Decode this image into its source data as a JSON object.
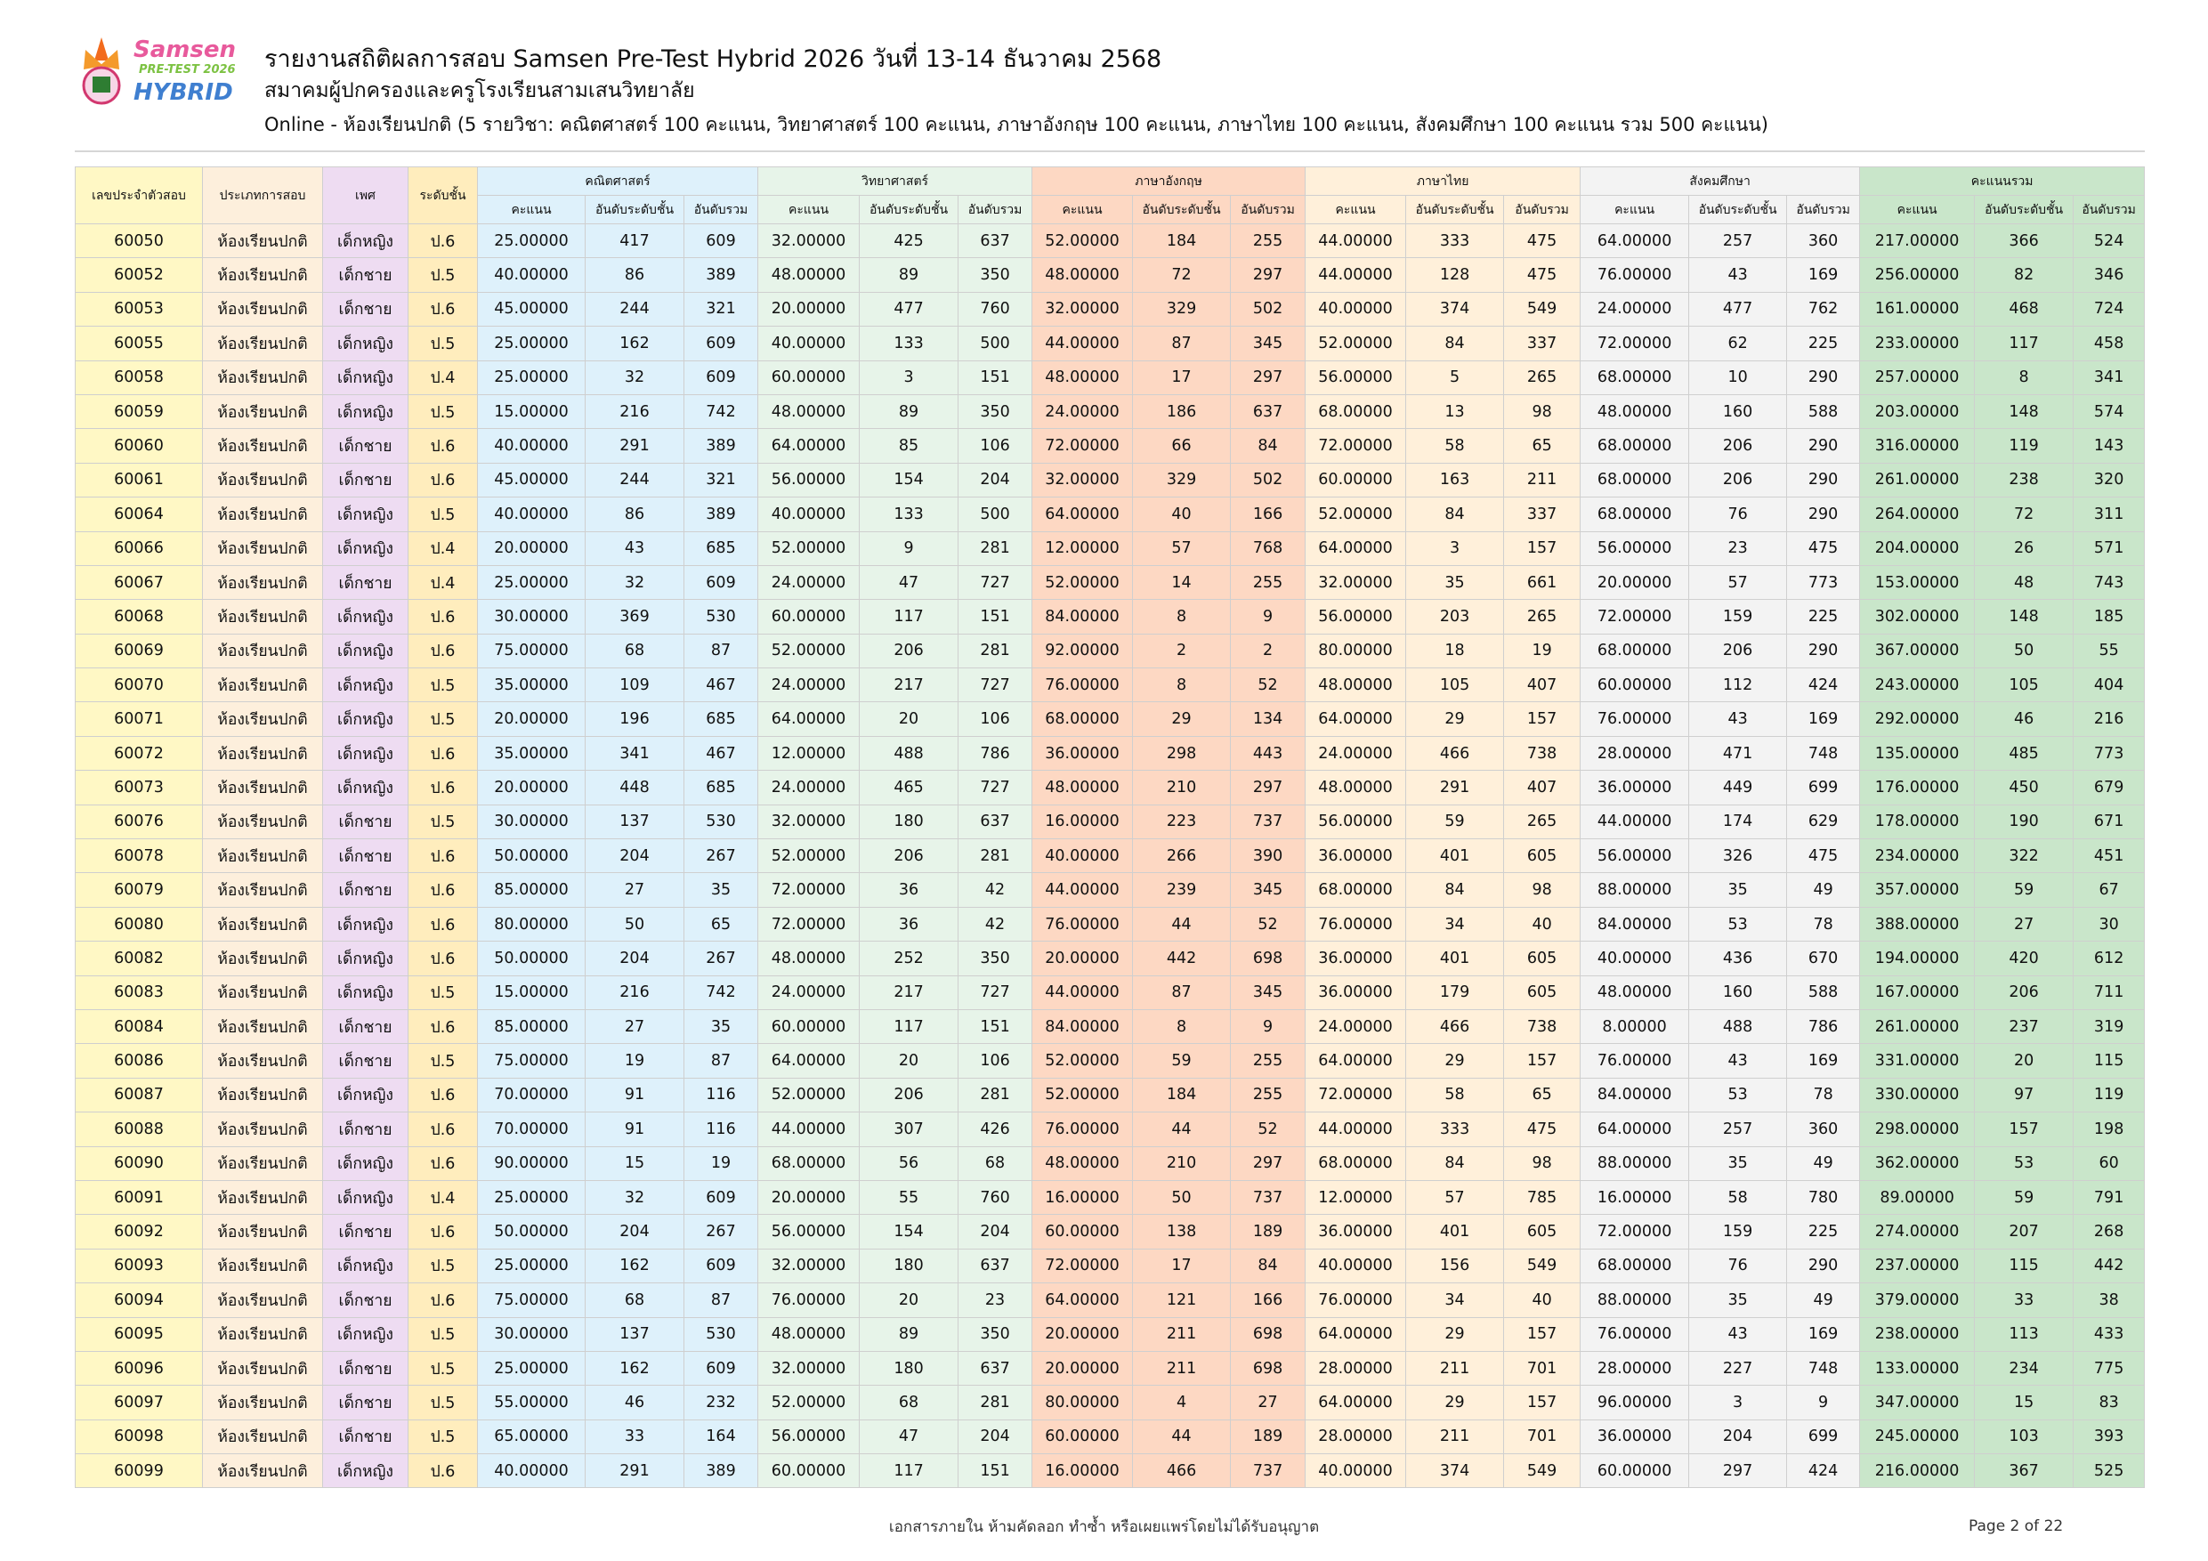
{
  "logo": {
    "line1": "Samsen",
    "line2": "PRE-TEST 2026",
    "line3": "HYBRID"
  },
  "header": {
    "title": "รายงานสถิติผลการสอบ Samsen Pre-Test Hybrid 2026 วันที่ 13-14 ธันวาคม 2568",
    "org": "สมาคมผู้ปกครองและครูโรงเรียนสามเสนวิทยาลัย",
    "subtitle": "Online - ห้องเรียนปกติ (5 รายวิชา: คณิตศาสตร์ 100 คะแนน, วิทยาศาสตร์ 100 คะแนน, ภาษาอังกฤษ 100 คะแนน, ภาษาไทย 100 คะแนน, สังคมศึกษา 100 คะแนน รวม 500 คะแนน)"
  },
  "colors": {
    "id": "#fff8c5",
    "type": "#fdefdc",
    "sex": "#eedcf2",
    "level": "#ffedbd",
    "math": "#def1fb",
    "science": "#e7f4e9",
    "english": "#fdd8c3",
    "thai": "#fff0da",
    "social": "#f3f3f3",
    "total": "#c9e6ca"
  },
  "table": {
    "fixed_headers": [
      "เลขประจำตัวสอบ",
      "ประเภทการสอบ",
      "เพศ",
      "ระดับชั้น"
    ],
    "groups": [
      "คณิตศาสตร์",
      "วิทยาศาสตร์",
      "ภาษาอังกฤษ",
      "ภาษาไทย",
      "สังคมศึกษา",
      "คะแนนรวม"
    ],
    "sub_headers": [
      "คะแนน",
      "อันดับระดับชั้น",
      "อันดับรวม"
    ],
    "rows": [
      [
        "60050",
        "ห้องเรียนปกติ",
        "เด็กหญิง",
        "ป.6",
        "25.00000",
        "417",
        "609",
        "32.00000",
        "425",
        "637",
        "52.00000",
        "184",
        "255",
        "44.00000",
        "333",
        "475",
        "64.00000",
        "257",
        "360",
        "217.00000",
        "366",
        "524"
      ],
      [
        "60052",
        "ห้องเรียนปกติ",
        "เด็กชาย",
        "ป.5",
        "40.00000",
        "86",
        "389",
        "48.00000",
        "89",
        "350",
        "48.00000",
        "72",
        "297",
        "44.00000",
        "128",
        "475",
        "76.00000",
        "43",
        "169",
        "256.00000",
        "82",
        "346"
      ],
      [
        "60053",
        "ห้องเรียนปกติ",
        "เด็กชาย",
        "ป.6",
        "45.00000",
        "244",
        "321",
        "20.00000",
        "477",
        "760",
        "32.00000",
        "329",
        "502",
        "40.00000",
        "374",
        "549",
        "24.00000",
        "477",
        "762",
        "161.00000",
        "468",
        "724"
      ],
      [
        "60055",
        "ห้องเรียนปกติ",
        "เด็กหญิง",
        "ป.5",
        "25.00000",
        "162",
        "609",
        "40.00000",
        "133",
        "500",
        "44.00000",
        "87",
        "345",
        "52.00000",
        "84",
        "337",
        "72.00000",
        "62",
        "225",
        "233.00000",
        "117",
        "458"
      ],
      [
        "60058",
        "ห้องเรียนปกติ",
        "เด็กหญิง",
        "ป.4",
        "25.00000",
        "32",
        "609",
        "60.00000",
        "3",
        "151",
        "48.00000",
        "17",
        "297",
        "56.00000",
        "5",
        "265",
        "68.00000",
        "10",
        "290",
        "257.00000",
        "8",
        "341"
      ],
      [
        "60059",
        "ห้องเรียนปกติ",
        "เด็กหญิง",
        "ป.5",
        "15.00000",
        "216",
        "742",
        "48.00000",
        "89",
        "350",
        "24.00000",
        "186",
        "637",
        "68.00000",
        "13",
        "98",
        "48.00000",
        "160",
        "588",
        "203.00000",
        "148",
        "574"
      ],
      [
        "60060",
        "ห้องเรียนปกติ",
        "เด็กชาย",
        "ป.6",
        "40.00000",
        "291",
        "389",
        "64.00000",
        "85",
        "106",
        "72.00000",
        "66",
        "84",
        "72.00000",
        "58",
        "65",
        "68.00000",
        "206",
        "290",
        "316.00000",
        "119",
        "143"
      ],
      [
        "60061",
        "ห้องเรียนปกติ",
        "เด็กชาย",
        "ป.6",
        "45.00000",
        "244",
        "321",
        "56.00000",
        "154",
        "204",
        "32.00000",
        "329",
        "502",
        "60.00000",
        "163",
        "211",
        "68.00000",
        "206",
        "290",
        "261.00000",
        "238",
        "320"
      ],
      [
        "60064",
        "ห้องเรียนปกติ",
        "เด็กหญิง",
        "ป.5",
        "40.00000",
        "86",
        "389",
        "40.00000",
        "133",
        "500",
        "64.00000",
        "40",
        "166",
        "52.00000",
        "84",
        "337",
        "68.00000",
        "76",
        "290",
        "264.00000",
        "72",
        "311"
      ],
      [
        "60066",
        "ห้องเรียนปกติ",
        "เด็กหญิง",
        "ป.4",
        "20.00000",
        "43",
        "685",
        "52.00000",
        "9",
        "281",
        "12.00000",
        "57",
        "768",
        "64.00000",
        "3",
        "157",
        "56.00000",
        "23",
        "475",
        "204.00000",
        "26",
        "571"
      ],
      [
        "60067",
        "ห้องเรียนปกติ",
        "เด็กชาย",
        "ป.4",
        "25.00000",
        "32",
        "609",
        "24.00000",
        "47",
        "727",
        "52.00000",
        "14",
        "255",
        "32.00000",
        "35",
        "661",
        "20.00000",
        "57",
        "773",
        "153.00000",
        "48",
        "743"
      ],
      [
        "60068",
        "ห้องเรียนปกติ",
        "เด็กหญิง",
        "ป.6",
        "30.00000",
        "369",
        "530",
        "60.00000",
        "117",
        "151",
        "84.00000",
        "8",
        "9",
        "56.00000",
        "203",
        "265",
        "72.00000",
        "159",
        "225",
        "302.00000",
        "148",
        "185"
      ],
      [
        "60069",
        "ห้องเรียนปกติ",
        "เด็กหญิง",
        "ป.6",
        "75.00000",
        "68",
        "87",
        "52.00000",
        "206",
        "281",
        "92.00000",
        "2",
        "2",
        "80.00000",
        "18",
        "19",
        "68.00000",
        "206",
        "290",
        "367.00000",
        "50",
        "55"
      ],
      [
        "60070",
        "ห้องเรียนปกติ",
        "เด็กหญิง",
        "ป.5",
        "35.00000",
        "109",
        "467",
        "24.00000",
        "217",
        "727",
        "76.00000",
        "8",
        "52",
        "48.00000",
        "105",
        "407",
        "60.00000",
        "112",
        "424",
        "243.00000",
        "105",
        "404"
      ],
      [
        "60071",
        "ห้องเรียนปกติ",
        "เด็กหญิง",
        "ป.5",
        "20.00000",
        "196",
        "685",
        "64.00000",
        "20",
        "106",
        "68.00000",
        "29",
        "134",
        "64.00000",
        "29",
        "157",
        "76.00000",
        "43",
        "169",
        "292.00000",
        "46",
        "216"
      ],
      [
        "60072",
        "ห้องเรียนปกติ",
        "เด็กหญิง",
        "ป.6",
        "35.00000",
        "341",
        "467",
        "12.00000",
        "488",
        "786",
        "36.00000",
        "298",
        "443",
        "24.00000",
        "466",
        "738",
        "28.00000",
        "471",
        "748",
        "135.00000",
        "485",
        "773"
      ],
      [
        "60073",
        "ห้องเรียนปกติ",
        "เด็กหญิง",
        "ป.6",
        "20.00000",
        "448",
        "685",
        "24.00000",
        "465",
        "727",
        "48.00000",
        "210",
        "297",
        "48.00000",
        "291",
        "407",
        "36.00000",
        "449",
        "699",
        "176.00000",
        "450",
        "679"
      ],
      [
        "60076",
        "ห้องเรียนปกติ",
        "เด็กชาย",
        "ป.5",
        "30.00000",
        "137",
        "530",
        "32.00000",
        "180",
        "637",
        "16.00000",
        "223",
        "737",
        "56.00000",
        "59",
        "265",
        "44.00000",
        "174",
        "629",
        "178.00000",
        "190",
        "671"
      ],
      [
        "60078",
        "ห้องเรียนปกติ",
        "เด็กชาย",
        "ป.6",
        "50.00000",
        "204",
        "267",
        "52.00000",
        "206",
        "281",
        "40.00000",
        "266",
        "390",
        "36.00000",
        "401",
        "605",
        "56.00000",
        "326",
        "475",
        "234.00000",
        "322",
        "451"
      ],
      [
        "60079",
        "ห้องเรียนปกติ",
        "เด็กชาย",
        "ป.6",
        "85.00000",
        "27",
        "35",
        "72.00000",
        "36",
        "42",
        "44.00000",
        "239",
        "345",
        "68.00000",
        "84",
        "98",
        "88.00000",
        "35",
        "49",
        "357.00000",
        "59",
        "67"
      ],
      [
        "60080",
        "ห้องเรียนปกติ",
        "เด็กหญิง",
        "ป.6",
        "80.00000",
        "50",
        "65",
        "72.00000",
        "36",
        "42",
        "76.00000",
        "44",
        "52",
        "76.00000",
        "34",
        "40",
        "84.00000",
        "53",
        "78",
        "388.00000",
        "27",
        "30"
      ],
      [
        "60082",
        "ห้องเรียนปกติ",
        "เด็กหญิง",
        "ป.6",
        "50.00000",
        "204",
        "267",
        "48.00000",
        "252",
        "350",
        "20.00000",
        "442",
        "698",
        "36.00000",
        "401",
        "605",
        "40.00000",
        "436",
        "670",
        "194.00000",
        "420",
        "612"
      ],
      [
        "60083",
        "ห้องเรียนปกติ",
        "เด็กหญิง",
        "ป.5",
        "15.00000",
        "216",
        "742",
        "24.00000",
        "217",
        "727",
        "44.00000",
        "87",
        "345",
        "36.00000",
        "179",
        "605",
        "48.00000",
        "160",
        "588",
        "167.00000",
        "206",
        "711"
      ],
      [
        "60084",
        "ห้องเรียนปกติ",
        "เด็กชาย",
        "ป.6",
        "85.00000",
        "27",
        "35",
        "60.00000",
        "117",
        "151",
        "84.00000",
        "8",
        "9",
        "24.00000",
        "466",
        "738",
        "8.00000",
        "488",
        "786",
        "261.00000",
        "237",
        "319"
      ],
      [
        "60086",
        "ห้องเรียนปกติ",
        "เด็กชาย",
        "ป.5",
        "75.00000",
        "19",
        "87",
        "64.00000",
        "20",
        "106",
        "52.00000",
        "59",
        "255",
        "64.00000",
        "29",
        "157",
        "76.00000",
        "43",
        "169",
        "331.00000",
        "20",
        "115"
      ],
      [
        "60087",
        "ห้องเรียนปกติ",
        "เด็กหญิง",
        "ป.6",
        "70.00000",
        "91",
        "116",
        "52.00000",
        "206",
        "281",
        "52.00000",
        "184",
        "255",
        "72.00000",
        "58",
        "65",
        "84.00000",
        "53",
        "78",
        "330.00000",
        "97",
        "119"
      ],
      [
        "60088",
        "ห้องเรียนปกติ",
        "เด็กชาย",
        "ป.6",
        "70.00000",
        "91",
        "116",
        "44.00000",
        "307",
        "426",
        "76.00000",
        "44",
        "52",
        "44.00000",
        "333",
        "475",
        "64.00000",
        "257",
        "360",
        "298.00000",
        "157",
        "198"
      ],
      [
        "60090",
        "ห้องเรียนปกติ",
        "เด็กหญิง",
        "ป.6",
        "90.00000",
        "15",
        "19",
        "68.00000",
        "56",
        "68",
        "48.00000",
        "210",
        "297",
        "68.00000",
        "84",
        "98",
        "88.00000",
        "35",
        "49",
        "362.00000",
        "53",
        "60"
      ],
      [
        "60091",
        "ห้องเรียนปกติ",
        "เด็กหญิง",
        "ป.4",
        "25.00000",
        "32",
        "609",
        "20.00000",
        "55",
        "760",
        "16.00000",
        "50",
        "737",
        "12.00000",
        "57",
        "785",
        "16.00000",
        "58",
        "780",
        "89.00000",
        "59",
        "791"
      ],
      [
        "60092",
        "ห้องเรียนปกติ",
        "เด็กชาย",
        "ป.6",
        "50.00000",
        "204",
        "267",
        "56.00000",
        "154",
        "204",
        "60.00000",
        "138",
        "189",
        "36.00000",
        "401",
        "605",
        "72.00000",
        "159",
        "225",
        "274.00000",
        "207",
        "268"
      ],
      [
        "60093",
        "ห้องเรียนปกติ",
        "เด็กหญิง",
        "ป.5",
        "25.00000",
        "162",
        "609",
        "32.00000",
        "180",
        "637",
        "72.00000",
        "17",
        "84",
        "40.00000",
        "156",
        "549",
        "68.00000",
        "76",
        "290",
        "237.00000",
        "115",
        "442"
      ],
      [
        "60094",
        "ห้องเรียนปกติ",
        "เด็กชาย",
        "ป.6",
        "75.00000",
        "68",
        "87",
        "76.00000",
        "20",
        "23",
        "64.00000",
        "121",
        "166",
        "76.00000",
        "34",
        "40",
        "88.00000",
        "35",
        "49",
        "379.00000",
        "33",
        "38"
      ],
      [
        "60095",
        "ห้องเรียนปกติ",
        "เด็กหญิง",
        "ป.5",
        "30.00000",
        "137",
        "530",
        "48.00000",
        "89",
        "350",
        "20.00000",
        "211",
        "698",
        "64.00000",
        "29",
        "157",
        "76.00000",
        "43",
        "169",
        "238.00000",
        "113",
        "433"
      ],
      [
        "60096",
        "ห้องเรียนปกติ",
        "เด็กชาย",
        "ป.5",
        "25.00000",
        "162",
        "609",
        "32.00000",
        "180",
        "637",
        "20.00000",
        "211",
        "698",
        "28.00000",
        "211",
        "701",
        "28.00000",
        "227",
        "748",
        "133.00000",
        "234",
        "775"
      ],
      [
        "60097",
        "ห้องเรียนปกติ",
        "เด็กชาย",
        "ป.5",
        "55.00000",
        "46",
        "232",
        "52.00000",
        "68",
        "281",
        "80.00000",
        "4",
        "27",
        "64.00000",
        "29",
        "157",
        "96.00000",
        "3",
        "9",
        "347.00000",
        "15",
        "83"
      ],
      [
        "60098",
        "ห้องเรียนปกติ",
        "เด็กชาย",
        "ป.5",
        "65.00000",
        "33",
        "164",
        "56.00000",
        "47",
        "204",
        "60.00000",
        "44",
        "189",
        "28.00000",
        "211",
        "701",
        "36.00000",
        "204",
        "699",
        "245.00000",
        "103",
        "393"
      ],
      [
        "60099",
        "ห้องเรียนปกติ",
        "เด็กหญิง",
        "ป.6",
        "40.00000",
        "291",
        "389",
        "60.00000",
        "117",
        "151",
        "16.00000",
        "466",
        "737",
        "40.00000",
        "374",
        "549",
        "60.00000",
        "297",
        "424",
        "216.00000",
        "367",
        "525"
      ]
    ]
  },
  "footer": {
    "notice": "เอกสารภายใน ห้ามคัดลอก ทำซ้ำ หรือเผยแพร่โดยไม่ได้รับอนุญาต",
    "page": "Page 2 of 22"
  }
}
